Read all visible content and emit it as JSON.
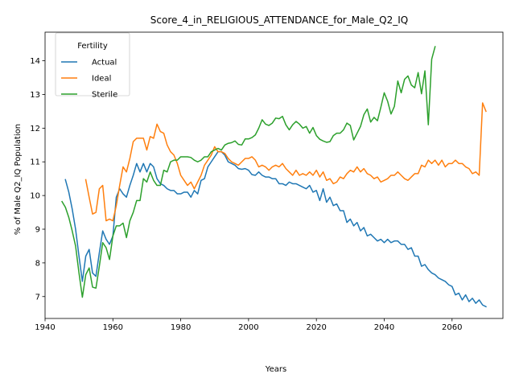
{
  "chart_data": {
    "type": "line",
    "title": "Score_4_in_RELIGIOUS_ATTENDANCE_for_Male_Q2_IQ",
    "xlabel": "Years",
    "ylabel": "% of Male Q2_IQ Population",
    "xlim": [
      1940,
      2075
    ],
    "ylim": [
      6.35,
      14.85
    ],
    "xticks": [
      1940,
      1960,
      1980,
      2000,
      2020,
      2040,
      2060
    ],
    "yticks": [
      7,
      8,
      9,
      10,
      11,
      12,
      13,
      14
    ],
    "grid": false,
    "legend": {
      "title": "Fertility",
      "position": "top-left"
    },
    "series": [
      {
        "name": "Actual",
        "color": "#1f77b4",
        "x": [
          1946,
          1947,
          1948,
          1949,
          1950,
          1951,
          1952,
          1953,
          1954,
          1955,
          1956,
          1957,
          1958,
          1959,
          1960,
          1961,
          1962,
          1963,
          1964,
          1965,
          1966,
          1967,
          1968,
          1969,
          1970,
          1971,
          1972,
          1973,
          1974,
          1975,
          1976,
          1977,
          1978,
          1979,
          1980,
          1981,
          1982,
          1983,
          1984,
          1985,
          1986,
          1987,
          1988,
          1989,
          1990,
          1991,
          1992,
          1993,
          1994,
          1995,
          1996,
          1997,
          1998,
          1999,
          2000,
          2001,
          2002,
          2003,
          2004,
          2005,
          2006,
          2007,
          2008,
          2009,
          2010,
          2011,
          2012,
          2013,
          2014,
          2015,
          2016,
          2017,
          2018,
          2019,
          2020,
          2021,
          2022,
          2023,
          2024,
          2025,
          2026,
          2027,
          2028,
          2029,
          2030,
          2031,
          2032,
          2033,
          2034,
          2035,
          2036,
          2037,
          2038,
          2039,
          2040,
          2041,
          2042,
          2043,
          2044,
          2045,
          2046,
          2047,
          2048,
          2049,
          2050,
          2051,
          2052,
          2053,
          2054,
          2055,
          2056,
          2057,
          2058,
          2059,
          2060,
          2061,
          2062,
          2063,
          2064,
          2065,
          2066,
          2067,
          2068,
          2069,
          2070
        ],
        "values": [
          10.47,
          10.1,
          9.6,
          9.0,
          8.2,
          7.45,
          8.2,
          8.4,
          7.7,
          7.6,
          8.3,
          8.95,
          8.7,
          8.55,
          8.8,
          9.95,
          10.2,
          10.05,
          9.95,
          10.3,
          10.6,
          10.95,
          10.7,
          10.95,
          10.7,
          10.95,
          10.85,
          10.5,
          10.35,
          10.3,
          10.2,
          10.15,
          10.15,
          10.05,
          10.05,
          10.1,
          10.1,
          9.95,
          10.15,
          10.05,
          10.45,
          10.5,
          10.85,
          11.0,
          11.15,
          11.3,
          11.3,
          11.2,
          11.0,
          10.95,
          10.9,
          10.8,
          10.78,
          10.8,
          10.75,
          10.62,
          10.6,
          10.7,
          10.6,
          10.55,
          10.55,
          10.5,
          10.5,
          10.35,
          10.35,
          10.3,
          10.4,
          10.35,
          10.35,
          10.3,
          10.25,
          10.2,
          10.3,
          10.1,
          10.15,
          9.85,
          10.2,
          9.8,
          9.95,
          9.7,
          9.75,
          9.55,
          9.55,
          9.2,
          9.3,
          9.1,
          9.2,
          8.95,
          9.05,
          8.8,
          8.85,
          8.75,
          8.65,
          8.7,
          8.6,
          8.7,
          8.6,
          8.65,
          8.65,
          8.55,
          8.55,
          8.4,
          8.45,
          8.2,
          8.2,
          7.9,
          7.95,
          7.8,
          7.7,
          7.65,
          7.55,
          7.5,
          7.45,
          7.35,
          7.3,
          7.05,
          7.1,
          6.9,
          7.05,
          6.85,
          6.95,
          6.8,
          6.9,
          6.75,
          6.7
        ]
      },
      {
        "name": "Ideal",
        "color": "#ff7f0e",
        "x": [
          1952,
          1953,
          1954,
          1955,
          1956,
          1957,
          1958,
          1959,
          1960,
          1961,
          1962,
          1963,
          1964,
          1965,
          1966,
          1967,
          1968,
          1969,
          1970,
          1971,
          1972,
          1973,
          1974,
          1975,
          1976,
          1977,
          1978,
          1979,
          1980,
          1981,
          1982,
          1983,
          1984,
          1985,
          1986,
          1987,
          1988,
          1989,
          1990,
          1991,
          1992,
          1993,
          1994,
          1995,
          1996,
          1997,
          1998,
          1999,
          2000,
          2001,
          2002,
          2003,
          2004,
          2005,
          2006,
          2007,
          2008,
          2009,
          2010,
          2011,
          2012,
          2013,
          2014,
          2015,
          2016,
          2017,
          2018,
          2019,
          2020,
          2021,
          2022,
          2023,
          2024,
          2025,
          2026,
          2027,
          2028,
          2029,
          2030,
          2031,
          2032,
          2033,
          2034,
          2035,
          2036,
          2037,
          2038,
          2039,
          2040,
          2041,
          2042,
          2043,
          2044,
          2045,
          2046,
          2047,
          2048,
          2049,
          2050,
          2051,
          2052,
          2053,
          2054,
          2055,
          2056,
          2057,
          2058,
          2059,
          2060,
          2061,
          2062,
          2063,
          2064,
          2065,
          2066,
          2067,
          2068,
          2069,
          2070
        ],
        "values": [
          10.47,
          9.95,
          9.45,
          9.5,
          10.2,
          10.3,
          9.25,
          9.3,
          9.25,
          9.7,
          10.3,
          10.85,
          10.7,
          11.1,
          11.6,
          11.7,
          11.7,
          11.7,
          11.35,
          11.75,
          11.7,
          12.12,
          11.9,
          11.85,
          11.5,
          11.3,
          11.2,
          10.95,
          10.6,
          10.45,
          10.3,
          10.4,
          10.2,
          10.4,
          10.6,
          10.9,
          11.05,
          11.2,
          11.45,
          11.3,
          11.3,
          11.25,
          11.1,
          11.0,
          10.95,
          10.9,
          11.0,
          11.1,
          11.1,
          11.15,
          11.05,
          10.85,
          10.9,
          10.85,
          10.75,
          10.85,
          10.9,
          10.85,
          10.95,
          10.8,
          10.7,
          10.6,
          10.75,
          10.6,
          10.65,
          10.6,
          10.7,
          10.6,
          10.75,
          10.55,
          10.7,
          10.45,
          10.5,
          10.35,
          10.4,
          10.55,
          10.5,
          10.65,
          10.75,
          10.7,
          10.85,
          10.7,
          10.8,
          10.65,
          10.6,
          10.5,
          10.55,
          10.4,
          10.45,
          10.5,
          10.6,
          10.6,
          10.7,
          10.6,
          10.5,
          10.45,
          10.55,
          10.65,
          10.65,
          10.9,
          10.85,
          11.05,
          10.95,
          11.05,
          10.9,
          11.05,
          10.85,
          10.95,
          10.95,
          11.05,
          10.95,
          10.95,
          10.85,
          10.8,
          10.65,
          10.7,
          10.6,
          12.75,
          12.5
        ]
      },
      {
        "name": "Sterile",
        "color": "#2ca02c",
        "x": [
          1945,
          1946,
          1947,
          1948,
          1949,
          1950,
          1951,
          1952,
          1953,
          1954,
          1955,
          1956,
          1957,
          1958,
          1959,
          1960,
          1961,
          1962,
          1963,
          1964,
          1965,
          1966,
          1967,
          1968,
          1969,
          1970,
          1971,
          1972,
          1973,
          1974,
          1975,
          1976,
          1977,
          1978,
          1979,
          1980,
          1981,
          1982,
          1983,
          1984,
          1985,
          1986,
          1987,
          1988,
          1989,
          1990,
          1991,
          1992,
          1993,
          1994,
          1995,
          1996,
          1997,
          1998,
          1999,
          2000,
          2001,
          2002,
          2003,
          2004,
          2005,
          2006,
          2007,
          2008,
          2009,
          2010,
          2011,
          2012,
          2013,
          2014,
          2015,
          2016,
          2017,
          2018,
          2019,
          2020,
          2021,
          2022,
          2023,
          2024,
          2025,
          2026,
          2027,
          2028,
          2029,
          2030,
          2031,
          2032,
          2033,
          2034,
          2035,
          2036,
          2037,
          2038,
          2039,
          2040,
          2041,
          2042,
          2043,
          2044,
          2045,
          2046,
          2047,
          2048,
          2049,
          2050,
          2051,
          2052,
          2053,
          2054,
          2055
        ],
        "values": [
          9.82,
          9.65,
          9.35,
          8.95,
          8.5,
          7.7,
          6.98,
          7.65,
          7.85,
          7.28,
          7.25,
          7.9,
          8.6,
          8.45,
          8.1,
          8.8,
          9.1,
          9.1,
          9.18,
          8.75,
          9.25,
          9.5,
          9.85,
          9.85,
          10.5,
          10.4,
          10.7,
          10.45,
          10.3,
          10.3,
          10.75,
          10.7,
          11.0,
          11.05,
          11.05,
          11.15,
          11.15,
          11.15,
          11.13,
          11.05,
          11.0,
          11.05,
          11.15,
          11.15,
          11.3,
          11.35,
          11.4,
          11.35,
          11.5,
          11.55,
          11.57,
          11.62,
          11.52,
          11.5,
          11.68,
          11.68,
          11.72,
          11.8,
          12.0,
          12.25,
          12.12,
          12.08,
          12.15,
          12.3,
          12.28,
          12.35,
          12.1,
          11.95,
          12.1,
          12.2,
          12.12,
          12.0,
          12.05,
          11.85,
          12.02,
          11.78,
          11.67,
          11.62,
          11.58,
          11.6,
          11.78,
          11.85,
          11.85,
          11.95,
          12.15,
          12.08,
          11.65,
          11.85,
          12.05,
          12.4,
          12.57,
          12.18,
          12.32,
          12.22,
          12.62,
          13.05,
          12.8,
          12.42,
          12.65,
          13.4,
          13.05,
          13.45,
          13.55,
          13.28,
          13.2,
          13.65,
          13.02,
          13.7,
          12.1,
          14.05,
          14.42
        ]
      }
    ]
  }
}
